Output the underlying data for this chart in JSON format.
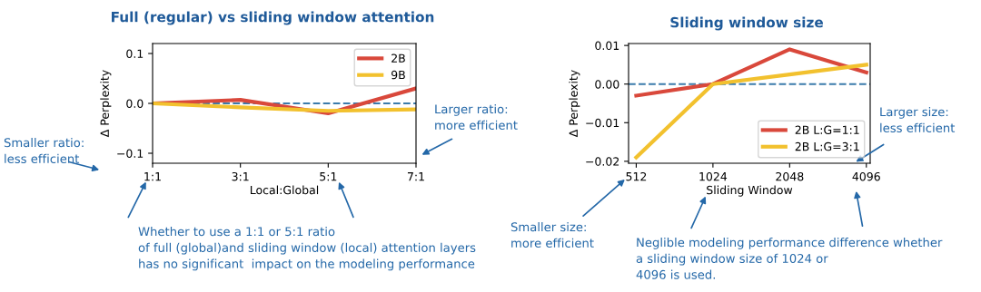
{
  "chart_data": [
    {
      "type": "line",
      "title": "Full (regular) vs sliding window attention",
      "xlabel": "Local:Global",
      "ylabel": "Δ Perplexity",
      "categories": [
        "1:1",
        "3:1",
        "5:1",
        "7:1"
      ],
      "series": [
        {
          "name": "2B",
          "color": "#d9483b",
          "values": [
            0.0,
            0.007,
            -0.02,
            0.03
          ]
        },
        {
          "name": "9B",
          "color": "#f2c12e",
          "values": [
            0.0,
            -0.008,
            -0.015,
            -0.012
          ]
        }
      ],
      "ylim": [
        -0.12,
        0.12
      ],
      "yticks": [
        {
          "value": -0.1,
          "label": "−0.1"
        },
        {
          "value": 0.0,
          "label": "0.0"
        },
        {
          "value": 0.1,
          "label": "0.1"
        }
      ],
      "ref_lines": [
        {
          "axis": "y",
          "value": 0.0,
          "color": "#3b7bab",
          "line_style": "dashed"
        }
      ],
      "legend": "top right",
      "grid": false,
      "marker": "none",
      "line_style": "solid",
      "annotations": [
        "Smaller ratio:\nless efficient",
        "Larger ratio:\nmore efficient",
        "Whether to use a 1:1 or 5:1 ratio\nof full (global)and sliding window (local) attention layers\nhas no significant  impact on the modeling performance"
      ]
    },
    {
      "type": "line",
      "title": "Sliding window size",
      "xlabel": "Sliding Window",
      "ylabel": "Δ Perplexity",
      "categories": [
        "512",
        "1024",
        "2048",
        "4096"
      ],
      "series": [
        {
          "name": "2B L:G=1:1",
          "color": "#d9483b",
          "values": [
            -0.003,
            0.0,
            0.009,
            0.003
          ]
        },
        {
          "name": "2B L:G=3:1",
          "color": "#f2c12e",
          "values": [
            -0.019,
            0.0,
            0.0025,
            0.005
          ]
        }
      ],
      "ylim": [
        -0.0205,
        0.0105
      ],
      "yticks": [
        {
          "value": -0.02,
          "label": "−0.02"
        },
        {
          "value": -0.01,
          "label": "−0.01"
        },
        {
          "value": 0.0,
          "label": "0.00"
        },
        {
          "value": 0.01,
          "label": "0.01"
        }
      ],
      "ref_lines": [
        {
          "axis": "y",
          "value": 0.0,
          "color": "#3b7bab",
          "line_style": "dashed"
        }
      ],
      "legend": "bottom right",
      "grid": false,
      "marker": "none",
      "line_style": "solid",
      "annotations": [
        "Smaller size:\nmore efficient",
        "Larger size:\nless efficient",
        "Neglible modeling performance difference whether\na sliding window size of 1024 or\n4096 is used."
      ]
    }
  ]
}
